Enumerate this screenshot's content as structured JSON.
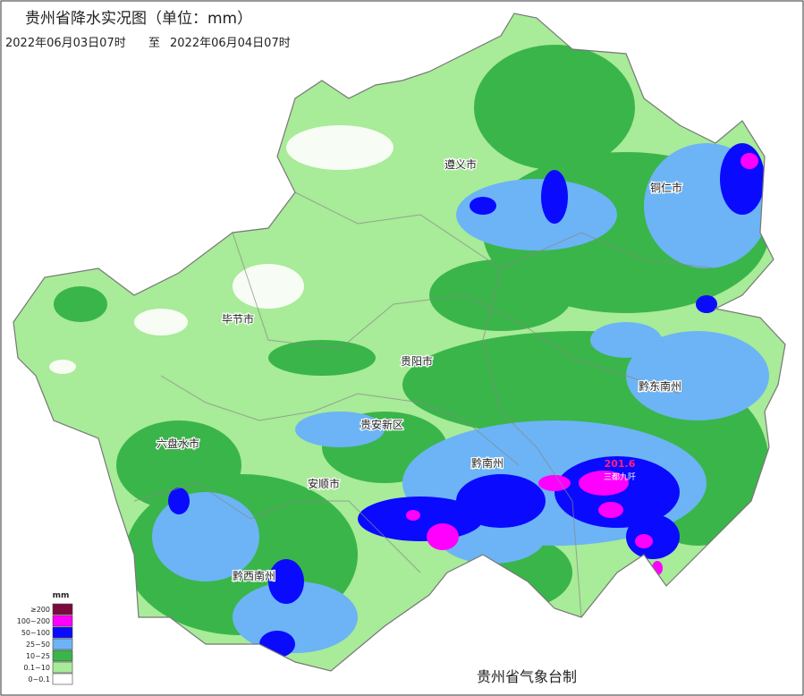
{
  "header": {
    "title": "贵州省降水实况图（单位：mm）",
    "period_start": "2022年06月03日07时",
    "period_sep": "至",
    "period_end": "2022年06月04日07时"
  },
  "map": {
    "cities": [
      {
        "label": "遵义市"
      },
      {
        "label": "铜仁市"
      },
      {
        "label": "毕节市"
      },
      {
        "label": "贵阳市"
      },
      {
        "label": "黔东南州"
      },
      {
        "label": "贵安新区"
      },
      {
        "label": "六盘水市"
      },
      {
        "label": "黔南州"
      },
      {
        "label": "安顺市"
      },
      {
        "label": "黔西南州"
      }
    ],
    "max_station": {
      "value": 201.6,
      "label": "三都九阡"
    }
  },
  "legend": {
    "unit": "mm",
    "items": [
      {
        "label": "≥200",
        "color": "#7a0b3c"
      },
      {
        "label": "100~200",
        "color": "#ff00ff"
      },
      {
        "label": "50~100",
        "color": "#0a0aff"
      },
      {
        "label": "25~50",
        "color": "#6cb4f5"
      },
      {
        "label": "10~25",
        "color": "#3ab54a"
      },
      {
        "label": "0.1~10",
        "color": "#a8eb98"
      },
      {
        "label": "0~0.1",
        "color": "#ffffff"
      }
    ]
  },
  "footer": {
    "credit": "贵州省气象台制"
  }
}
